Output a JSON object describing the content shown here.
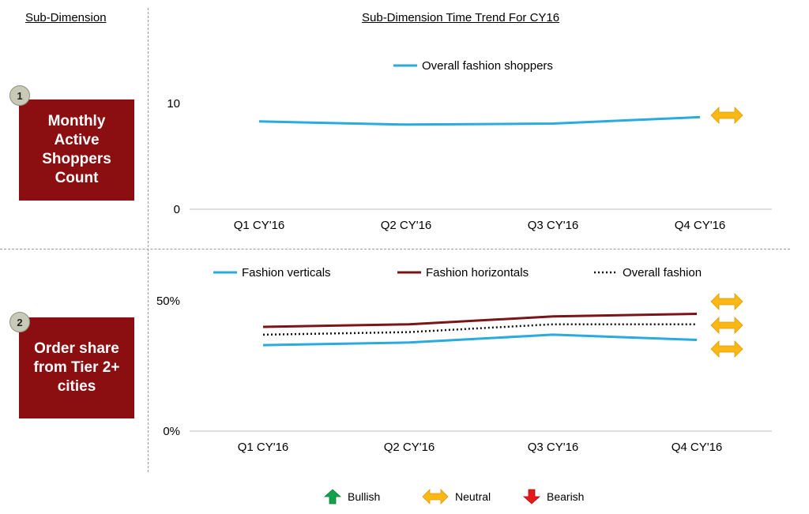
{
  "header": {
    "left_title": "Sub-Dimension",
    "right_title": "Sub-Dimension Time Trend For CY16"
  },
  "dimensions": [
    {
      "badge": "1",
      "label": "Monthly Active Shoppers Count"
    },
    {
      "badge": "2",
      "label": "Order share from Tier 2+ cities"
    }
  ],
  "colors": {
    "box": "#8b0e10",
    "cyan": "#29aae1",
    "maroon": "#7b1416",
    "dotted": "#111111",
    "neutral_arrow": "#fbb814",
    "bullish_arrow": "#12a14b",
    "bearish_arrow": "#e31b1b"
  },
  "chart_data": [
    {
      "type": "line",
      "categories": [
        "Q1 CY'16",
        "Q2 CY'16",
        "Q3 CY'16",
        "Q4 CY'16"
      ],
      "yticks": [
        "0",
        "10"
      ],
      "ylim": [
        0,
        10
      ],
      "series": [
        {
          "name": "Overall fashion shoppers",
          "values": [
            8.3,
            8.0,
            8.1,
            8.7
          ],
          "style": "solid",
          "color": "#29aae1"
        }
      ],
      "legend_position": "top",
      "indicators": [
        "Neutral"
      ]
    },
    {
      "type": "line",
      "categories": [
        "Q1 CY'16",
        "Q2 CY'16",
        "Q3 CY'16",
        "Q4 CY'16"
      ],
      "yticks": [
        "0%",
        "50%"
      ],
      "ylim": [
        0,
        50
      ],
      "series": [
        {
          "name": "Fashion verticals",
          "values": [
            33,
            34,
            37,
            35
          ],
          "style": "solid",
          "color": "#29aae1"
        },
        {
          "name": "Fashion horizontals",
          "values": [
            40,
            41,
            44,
            45
          ],
          "style": "solid",
          "color": "#7b1416"
        },
        {
          "name": "Overall fashion",
          "values": [
            37,
            38,
            41,
            41
          ],
          "style": "dotted",
          "color": "#111111"
        }
      ],
      "legend_position": "top",
      "indicators": [
        "Neutral",
        "Neutral",
        "Neutral"
      ]
    }
  ],
  "legend_footer": [
    {
      "label": "Bullish",
      "icon": "up-arrow-icon",
      "color": "#12a14b"
    },
    {
      "label": "Neutral",
      "icon": "left-right-arrow-icon",
      "color": "#fbb814"
    },
    {
      "label": "Bearish",
      "icon": "down-arrow-icon",
      "color": "#e31b1b"
    }
  ]
}
